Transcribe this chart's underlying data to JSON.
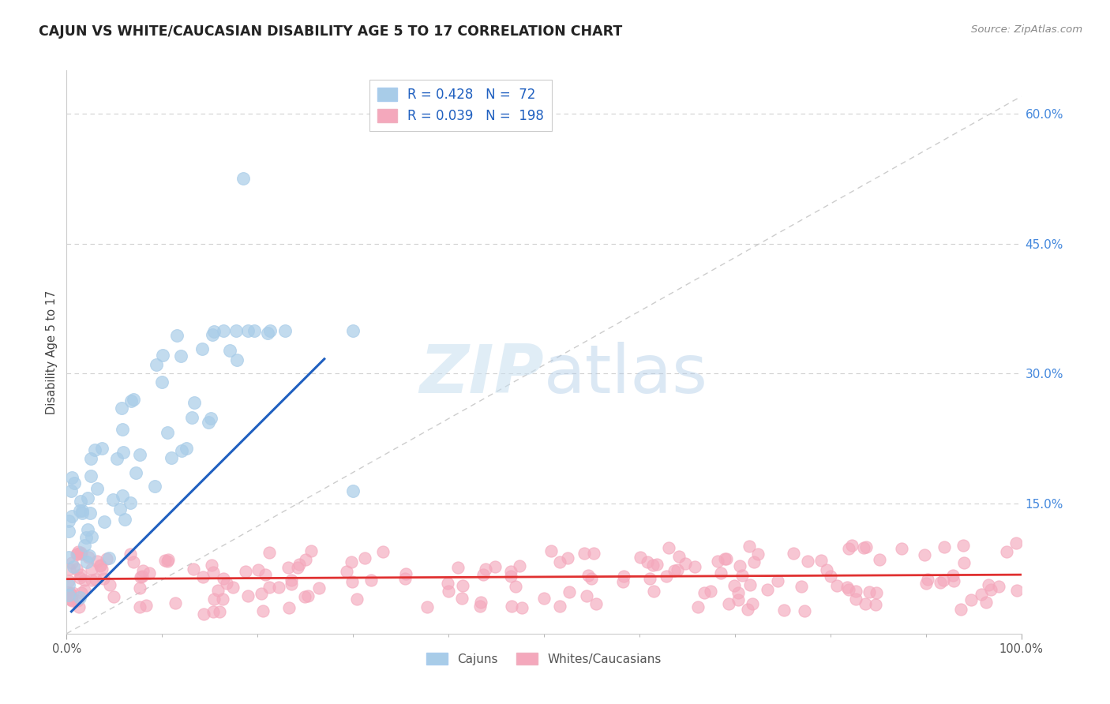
{
  "title": "CAJUN VS WHITE/CAUCASIAN DISABILITY AGE 5 TO 17 CORRELATION CHART",
  "source": "Source: ZipAtlas.com",
  "ylabel": "Disability Age 5 to 17",
  "xlim": [
    0,
    1.0
  ],
  "ylim": [
    0,
    0.65
  ],
  "xtick_vals": [
    0.0,
    1.0
  ],
  "xtick_labels": [
    "0.0%",
    "100.0%"
  ],
  "ytick_vals": [
    0.15,
    0.3,
    0.45,
    0.6
  ],
  "ytick_labels": [
    "15.0%",
    "30.0%",
    "45.0%",
    "60.0%"
  ],
  "legend_r1": "0.428",
  "legend_n1": "72",
  "legend_r2": "0.039",
  "legend_n2": "198",
  "blue_scatter_color": "#a8cce8",
  "pink_scatter_color": "#f4a8bc",
  "blue_line_color": "#2060c0",
  "pink_line_color": "#e03030",
  "diag_color": "#c0c0c0",
  "watermark_color": "#ddeeff",
  "grid_color": "#cccccc",
  "background_color": "#ffffff",
  "title_color": "#222222",
  "source_color": "#888888",
  "ytick_color": "#4488dd",
  "ylabel_color": "#444444",
  "bottom_legend_color": "#555555",
  "legend_text_color": "#2060c0",
  "seed_cajun": 12,
  "seed_white": 99
}
